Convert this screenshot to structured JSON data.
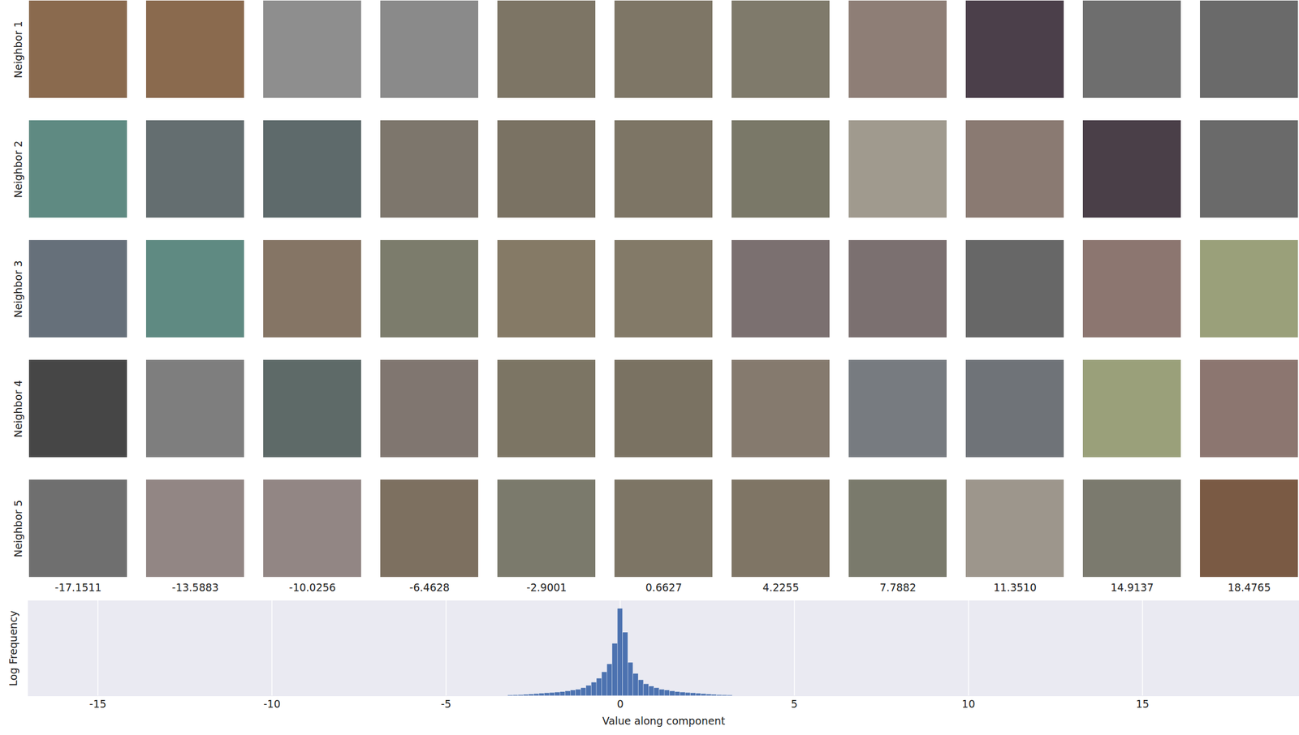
{
  "chart_data": [
    {
      "type": "image_grid",
      "rows": [
        "Neighbor 1",
        "Neighbor 2",
        "Neighbor 3",
        "Neighbor 4",
        "Neighbor 5"
      ],
      "columns": [
        -17.1511,
        -13.5883,
        -10.0256,
        -6.4628,
        -2.9001,
        0.6627,
        4.2255,
        7.7882,
        {
          "value": 11.351,
          "label": "11.3510"
        },
        14.9137,
        18.4765
      ],
      "cell_colors": [
        [
          "#8a6a4e",
          "#8a6a4e",
          "#8e8e8e",
          "#8a8a8a",
          "#7d7565",
          "#7e7666",
          "#7f7a6b",
          "#8e7e76",
          "#4b3f4a",
          "#6e6e6e",
          "#6a6a6a"
        ],
        [
          "#5f8a82",
          "#646e70",
          "#5e6a6b",
          "#7d766c",
          "#7a7263",
          "#7d7565",
          "#7a7868",
          "#a09a8e",
          "#8a7a72",
          "#4a3f48",
          "#6a6a6a"
        ],
        [
          "#66707a",
          "#5f8a82",
          "#857565",
          "#7c7c6c",
          "#857a66",
          "#837a68",
          "#7b7070",
          "#7b7070",
          "#676767",
          "#8c7670",
          "#9aa07a"
        ],
        [
          "#464646",
          "#7e7e7e",
          "#5e6a68",
          "#807670",
          "#7c7564",
          "#7a7262",
          "#857a6e",
          "#777b80",
          "#6f7378",
          "#9aa07a",
          "#8c7670"
        ],
        [
          "#6f6f6f",
          "#928684",
          "#928684",
          "#7d7060",
          "#7b7a6c",
          "#7d7565",
          "#7f7565",
          "#7a7a6c",
          "#9d968c",
          "#7b7a6e",
          "#7a5a44"
        ]
      ]
    },
    {
      "type": "histogram",
      "x_label": "Value along component",
      "y_label": "Log Frequency",
      "bins": [
        -3.225,
        -3.075,
        -2.925,
        -2.775,
        -2.625,
        -2.475,
        -2.325,
        -2.175,
        -2.025,
        -1.875,
        -1.725,
        -1.575,
        -1.425,
        -1.275,
        -1.125,
        -0.975,
        -0.825,
        -0.675,
        -0.525,
        -0.375,
        -0.225,
        -0.075,
        0.075,
        0.225,
        0.375,
        0.525,
        0.675,
        0.825,
        0.975,
        1.125,
        1.275,
        1.425,
        1.575,
        1.725,
        1.875,
        2.025,
        2.175,
        2.325,
        2.475,
        2.625,
        2.775,
        2.925,
        3.075,
        3.225
      ],
      "values": [
        0.8,
        1,
        1.2,
        1.5,
        2,
        2.5,
        3,
        3.5,
        4,
        4.5,
        5,
        6,
        7,
        8,
        10,
        13,
        17,
        22,
        30,
        40,
        66,
        110,
        80,
        42,
        28,
        20,
        15,
        12,
        10,
        8,
        7,
        6,
        5,
        4.5,
        4,
        3.5,
        3,
        2.5,
        2,
        1.5,
        1.2,
        1,
        0.8
      ],
      "color": "#4c72b0",
      "xlim": [
        -17,
        19.5
      ],
      "xticks": [
        -15,
        -10,
        -5,
        0,
        5,
        10,
        15
      ],
      "ylim": [
        0,
        120
      ],
      "grid": true,
      "tick_labels": "x"
    }
  ]
}
